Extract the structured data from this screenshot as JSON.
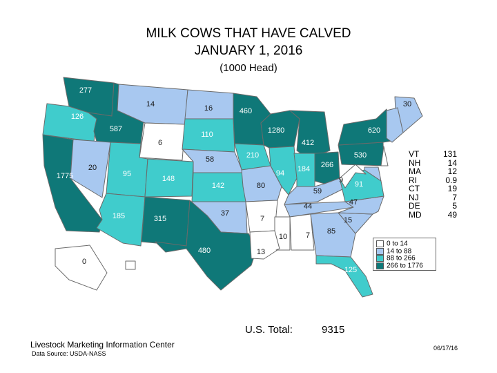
{
  "title_line1": "MILK COWS THAT HAVE CALVED",
  "title_line2": "JANUARY 1, 2016",
  "title_line3": "(1000 Head)",
  "colors": {
    "c1": "#ffffff",
    "c2": "#a8c8f0",
    "c3": "#40cccc",
    "c4": "#0f7878",
    "border": "#6a6a6a"
  },
  "legend": [
    {
      "label": "0 to 14",
      "color": "#ffffff"
    },
    {
      "label": "14 to 88",
      "color": "#a8c8f0"
    },
    {
      "label": "88 to 266",
      "color": "#40cccc"
    },
    {
      "label": "266 to 1776",
      "color": "#0f7878"
    }
  ],
  "states": {
    "WA": "277",
    "OR": "126",
    "ID": "587",
    "MT": "14",
    "WY": "6",
    "NV": "20",
    "CA": "1775",
    "UT": "95",
    "CO": "148",
    "AZ": "185",
    "NM": "315",
    "ND": "16",
    "SD": "110",
    "NE": "58",
    "KS": "142",
    "OK": "37",
    "TX": "480",
    "MN": "460",
    "IA": "210",
    "MO": "80",
    "AR": "7",
    "LA": "13",
    "WI": "1280",
    "IL": "94",
    "MI": "412",
    "IN": "184",
    "OH": "266",
    "KY": "59",
    "TN": "44",
    "MS": "10",
    "AL": "7",
    "GA": "85",
    "FL": "125",
    "SC": "15",
    "NC": "47",
    "VA": "91",
    "WV": "9",
    "PA": "530",
    "NY": "620",
    "ME": "30",
    "AK": "0"
  },
  "small_states": [
    {
      "abbr": "VT",
      "value": "131"
    },
    {
      "abbr": "NH",
      "value": "14"
    },
    {
      "abbr": "MA",
      "value": "12"
    },
    {
      "abbr": "RI",
      "value": "0.9"
    },
    {
      "abbr": "CT",
      "value": "19"
    },
    {
      "abbr": "NJ",
      "value": "7"
    },
    {
      "abbr": "DE",
      "value": "5"
    },
    {
      "abbr": "MD",
      "value": "49"
    }
  ],
  "total_label": "U.S. Total:",
  "total_value": "9315",
  "org": "Livestock Marketing Information Center",
  "source": "Data Source: USDA-NASS",
  "date": "06/17/16"
}
